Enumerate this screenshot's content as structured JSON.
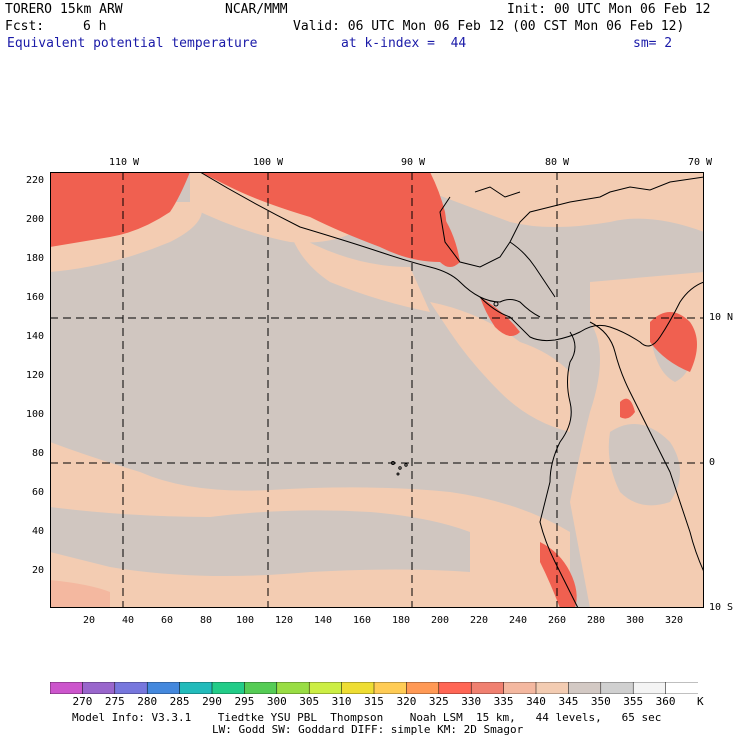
{
  "header": {
    "model": "TORERO",
    "resolution": "15km ARW",
    "org": "NCAR/MMM",
    "init": "Init: 00 UTC Mon 06 Feb 12",
    "fcst_label": "Fcst:",
    "fcst_value": "6 h",
    "valid": "Valid: 06 UTC Mon 06 Feb 12 (00 CST Mon 06 Feb 12)",
    "field": "Equivalent potential temperature",
    "level": "at k-index =  44",
    "smoothing": "sm= 2"
  },
  "map": {
    "top_lon_labels": [
      "110 W",
      "100 W",
      "90 W",
      "80 W",
      "70 W"
    ],
    "right_lat_labels": [
      "10 N",
      "0",
      "10 S"
    ],
    "left_grid_labels": [
      "220",
      "200",
      "180",
      "160",
      "140",
      "120",
      "100",
      "80",
      "60",
      "40",
      "20"
    ],
    "bottom_grid_labels": [
      "20",
      "40",
      "60",
      "80",
      "100",
      "120",
      "140",
      "160",
      "180",
      "200",
      "220",
      "240",
      "260",
      "280",
      "300",
      "320"
    ],
    "background_color": "#d0c6c0",
    "coast_color": "#000000"
  },
  "colorbar": {
    "labels": [
      "270",
      "275",
      "280",
      "285",
      "290",
      "295",
      "300",
      "305",
      "310",
      "315",
      "320",
      "325",
      "330",
      "335",
      "340",
      "345",
      "350",
      "355",
      "360"
    ],
    "unit": "K",
    "colors": [
      "#cc55cc",
      "#9966cc",
      "#7777dd",
      "#4488dd",
      "#22bbbb",
      "#22cc88",
      "#55cc55",
      "#99dd44",
      "#ccee44",
      "#eedd33",
      "#ffcc55",
      "#ff9955",
      "#ff6655",
      "#f08070",
      "#f4b8a0",
      "#f3ccb2",
      "#d3c9c4",
      "#d0d0d0",
      "#f4f4f4",
      "#ffffff"
    ]
  },
  "footer": {
    "line1": "Model Info: V3.3.1    Tiedtke YSU PBL  Thompson    Noah LSM  15 km,   44 levels,   65 sec",
    "line2": "LW: Godd SW: Goddard DIFF: simple KM: 2D Smagor"
  }
}
